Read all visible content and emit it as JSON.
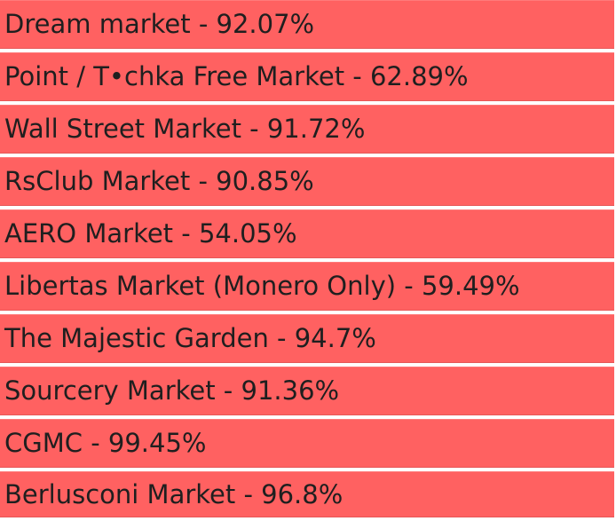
{
  "markets": [
    {
      "label": "Dream market - 92.07%",
      "uptime_percent": 92.07
    },
    {
      "label": "Point / T•chka Free Market - 62.89%",
      "uptime_percent": 62.89
    },
    {
      "label": "Wall Street Market - 91.72%",
      "uptime_percent": 91.72
    },
    {
      "label": "RsClub Market - 90.85%",
      "uptime_percent": 90.85
    },
    {
      "label": "AERO Market - 54.05%",
      "uptime_percent": 54.05
    },
    {
      "label": "Libertas Market (Monero Only) - 59.49%",
      "uptime_percent": 59.49
    },
    {
      "label": "The Majestic Garden - 94.7%",
      "uptime_percent": 94.7
    },
    {
      "label": "Sourcery Market - 91.36%",
      "uptime_percent": 91.36
    },
    {
      "label": "CGMC - 99.45%",
      "uptime_percent": 99.45
    },
    {
      "label": "Berlusconi Market - 96.8%",
      "uptime_percent": 96.8
    }
  ],
  "colors": {
    "row_background": "#ff6161",
    "row_text": "#1f1f1f",
    "separator": "#ffffff"
  }
}
